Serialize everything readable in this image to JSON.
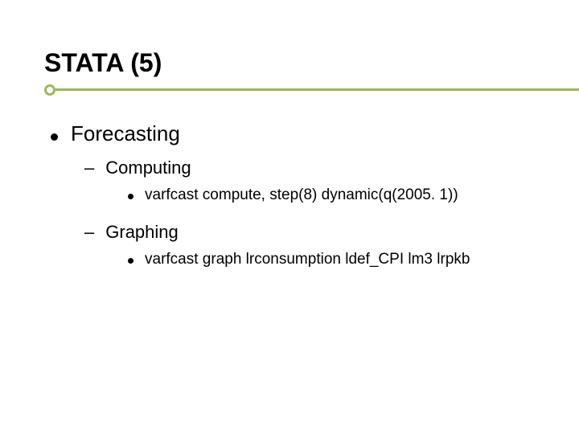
{
  "title": "STATA (5)",
  "accent_color": "#9bba59",
  "content": {
    "l1": {
      "text": "Forecasting"
    },
    "sub": [
      {
        "l2": {
          "text": "Computing"
        },
        "l3": {
          "text": "varfcast compute, step(8) dynamic(q(2005. 1))"
        }
      },
      {
        "l2": {
          "text": "Graphing"
        },
        "l3": {
          "text": "varfcast graph  lrconsumption ldef_CPI lm3 lrpkb"
        }
      }
    ]
  },
  "style": {
    "background_color": "#ffffff",
    "title_fontsize": 32,
    "title_color": "#000000",
    "rule_line_color": "#9bba59",
    "rule_dot_border_color": "#9bba59",
    "l1_fontsize": 26,
    "l2_fontsize": 22,
    "l3_fontsize": 19,
    "bullet_color": "#000000"
  }
}
